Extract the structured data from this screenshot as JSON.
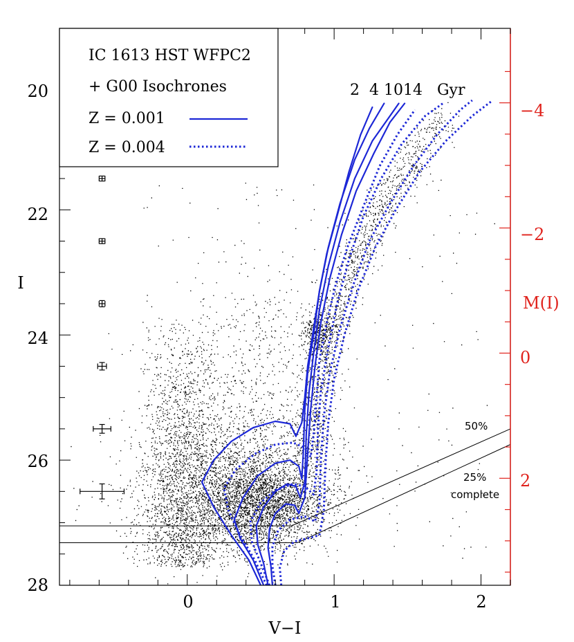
{
  "chart_data": {
    "type": "scatter",
    "title": "IC 1613 HST WFPC2",
    "xlabel": "V−I",
    "ylabel": "I",
    "ylabel_right": "M(I)",
    "xlim": [
      -0.87,
      2.2
    ],
    "ylim": [
      28,
      19.1
    ],
    "x_ticks": [
      0,
      1,
      2
    ],
    "x_tick_labels": [
      "0",
      "1",
      "2"
    ],
    "y_ticks": [
      20,
      22,
      24,
      26,
      28
    ],
    "y_tick_labels": [
      "20",
      "22",
      "24",
      "26",
      "28"
    ],
    "right_ticks": [
      -4,
      -2,
      0,
      2
    ],
    "right_tick_labels": [
      "−4",
      "−2",
      "0",
      "2"
    ],
    "distance_modulus": 24.29,
    "legend": {
      "line1": "IC 1613 HST WFPC2",
      "line2": "+ G00 Isochrones",
      "solid_label": "Z = 0.001",
      "dotted_label": "Z = 0.004"
    },
    "isochrone_ages_label": "2  4 1014   Gyr",
    "isochrone_ages_gyr": [
      2,
      4,
      10,
      14
    ],
    "completeness": {
      "label_50": "50%",
      "label_25": "25%",
      "label_complete": "complete",
      "line_50": [
        [
          -0.87,
          27.05
        ],
        [
          0.71,
          27.05
        ],
        [
          2.2,
          25.5
        ]
      ],
      "line_25": [
        [
          -0.87,
          27.32
        ],
        [
          0.75,
          27.32
        ],
        [
          2.2,
          25.75
        ]
      ]
    },
    "error_bars": [
      {
        "x": -0.58,
        "I": 21.5,
        "xerr": 0.02,
        "yerr": 0.04
      },
      {
        "x": -0.58,
        "I": 22.5,
        "xerr": 0.02,
        "yerr": 0.04
      },
      {
        "x": -0.58,
        "I": 23.5,
        "xerr": 0.02,
        "yerr": 0.05
      },
      {
        "x": -0.58,
        "I": 24.5,
        "xerr": 0.03,
        "yerr": 0.06
      },
      {
        "x": -0.58,
        "I": 25.5,
        "xerr": 0.06,
        "yerr": 0.07
      },
      {
        "x": -0.58,
        "I": 26.5,
        "xerr": 0.15,
        "yerr": 0.12
      }
    ],
    "series": [
      {
        "name": "Z=0.001 2 Gyr",
        "style": "solid",
        "color": "#1c27d6",
        "points": [
          [
            0.5,
            28
          ],
          [
            0.42,
            27.6
          ],
          [
            0.3,
            27.2
          ],
          [
            0.18,
            26.75
          ],
          [
            0.1,
            26.35
          ],
          [
            0.18,
            26.0
          ],
          [
            0.3,
            25.7
          ],
          [
            0.45,
            25.48
          ],
          [
            0.6,
            25.38
          ],
          [
            0.7,
            25.42
          ],
          [
            0.74,
            25.62
          ],
          [
            0.78,
            25.4
          ],
          [
            0.8,
            25.0
          ],
          [
            0.82,
            24.5
          ],
          [
            0.86,
            23.9
          ],
          [
            0.9,
            23.3
          ],
          [
            0.95,
            22.7
          ],
          [
            1.02,
            22.1
          ],
          [
            1.1,
            21.4
          ],
          [
            1.18,
            20.8
          ],
          [
            1.26,
            20.36
          ]
        ]
      },
      {
        "name": "Z=0.001 4 Gyr",
        "style": "solid",
        "color": "#1c27d6",
        "points": [
          [
            0.52,
            28
          ],
          [
            0.45,
            27.6
          ],
          [
            0.36,
            27.25
          ],
          [
            0.32,
            26.95
          ],
          [
            0.38,
            26.6
          ],
          [
            0.48,
            26.25
          ],
          [
            0.6,
            26.05
          ],
          [
            0.7,
            26.0
          ],
          [
            0.76,
            26.1
          ],
          [
            0.78,
            26.3
          ],
          [
            0.79,
            25.9
          ],
          [
            0.8,
            25.2
          ],
          [
            0.82,
            24.6
          ],
          [
            0.86,
            24.0
          ],
          [
            0.9,
            23.3
          ],
          [
            0.96,
            22.6
          ],
          [
            1.04,
            21.9
          ],
          [
            1.14,
            21.2
          ],
          [
            1.24,
            20.7
          ],
          [
            1.34,
            20.3
          ]
        ]
      },
      {
        "name": "Z=0.001 10 Gyr",
        "style": "solid",
        "color": "#1c27d6",
        "points": [
          [
            0.55,
            28
          ],
          [
            0.52,
            27.65
          ],
          [
            0.48,
            27.35
          ],
          [
            0.47,
            27.05
          ],
          [
            0.52,
            26.75
          ],
          [
            0.6,
            26.5
          ],
          [
            0.68,
            26.38
          ],
          [
            0.74,
            26.42
          ],
          [
            0.77,
            26.6
          ],
          [
            0.8,
            26.35
          ],
          [
            0.81,
            25.6
          ],
          [
            0.83,
            24.9
          ],
          [
            0.86,
            24.3
          ],
          [
            0.9,
            23.6
          ],
          [
            0.96,
            22.9
          ],
          [
            1.04,
            22.2
          ],
          [
            1.14,
            21.5
          ],
          [
            1.26,
            20.9
          ],
          [
            1.38,
            20.5
          ],
          [
            1.44,
            20.3
          ]
        ]
      },
      {
        "name": "Z=0.001 14 Gyr",
        "style": "solid",
        "color": "#1c27d6",
        "points": [
          [
            0.58,
            28
          ],
          [
            0.57,
            27.7
          ],
          [
            0.55,
            27.4
          ],
          [
            0.56,
            27.1
          ],
          [
            0.6,
            26.85
          ],
          [
            0.67,
            26.7
          ],
          [
            0.73,
            26.72
          ],
          [
            0.76,
            26.85
          ],
          [
            0.8,
            26.6
          ],
          [
            0.82,
            25.9
          ],
          [
            0.84,
            25.2
          ],
          [
            0.87,
            24.5
          ],
          [
            0.91,
            23.8
          ],
          [
            0.97,
            23.1
          ],
          [
            1.05,
            22.4
          ],
          [
            1.15,
            21.7
          ],
          [
            1.27,
            21.1
          ],
          [
            1.38,
            20.6
          ],
          [
            1.48,
            20.3
          ]
        ]
      },
      {
        "name": "Z=0.004 2 Gyr",
        "style": "dotted",
        "color": "#1c27d6",
        "points": [
          [
            0.54,
            28
          ],
          [
            0.46,
            27.6
          ],
          [
            0.36,
            27.2
          ],
          [
            0.28,
            26.8
          ],
          [
            0.25,
            26.45
          ],
          [
            0.33,
            26.15
          ],
          [
            0.46,
            25.9
          ],
          [
            0.6,
            25.75
          ],
          [
            0.72,
            25.72
          ],
          [
            0.8,
            25.8
          ],
          [
            0.84,
            25.95
          ],
          [
            0.86,
            25.6
          ],
          [
            0.88,
            25.0
          ],
          [
            0.9,
            24.4
          ],
          [
            0.95,
            23.8
          ],
          [
            1.01,
            23.2
          ],
          [
            1.09,
            22.6
          ],
          [
            1.19,
            22.0
          ],
          [
            1.31,
            21.3
          ],
          [
            1.43,
            20.8
          ],
          [
            1.55,
            20.4
          ]
        ]
      },
      {
        "name": "Z=0.004 4 Gyr",
        "style": "dotted",
        "color": "#1c27d6",
        "points": [
          [
            0.56,
            28
          ],
          [
            0.5,
            27.65
          ],
          [
            0.44,
            27.3
          ],
          [
            0.43,
            26.98
          ],
          [
            0.5,
            26.68
          ],
          [
            0.6,
            26.48
          ],
          [
            0.72,
            26.38
          ],
          [
            0.8,
            26.42
          ],
          [
            0.86,
            26.55
          ],
          [
            0.88,
            26.2
          ],
          [
            0.89,
            25.5
          ],
          [
            0.91,
            24.9
          ],
          [
            0.96,
            24.2
          ],
          [
            1.02,
            23.5
          ],
          [
            1.1,
            22.8
          ],
          [
            1.2,
            22.1
          ],
          [
            1.32,
            21.5
          ],
          [
            1.46,
            20.95
          ],
          [
            1.62,
            20.5
          ],
          [
            1.74,
            20.3
          ]
        ]
      },
      {
        "name": "Z=0.004 10 Gyr",
        "style": "dotted",
        "color": "#1c27d6",
        "points": [
          [
            0.6,
            28
          ],
          [
            0.58,
            27.7
          ],
          [
            0.58,
            27.38
          ],
          [
            0.62,
            27.12
          ],
          [
            0.7,
            26.95
          ],
          [
            0.8,
            26.9
          ],
          [
            0.87,
            26.98
          ],
          [
            0.9,
            26.7
          ],
          [
            0.91,
            26.0
          ],
          [
            0.93,
            25.3
          ],
          [
            0.97,
            24.6
          ],
          [
            1.04,
            23.9
          ],
          [
            1.13,
            23.2
          ],
          [
            1.24,
            22.5
          ],
          [
            1.38,
            21.9
          ],
          [
            1.54,
            21.3
          ],
          [
            1.7,
            20.8
          ],
          [
            1.86,
            20.4
          ],
          [
            1.94,
            20.25
          ]
        ]
      },
      {
        "name": "Z=0.004 14 Gyr",
        "style": "dotted",
        "color": "#1c27d6",
        "points": [
          [
            0.64,
            28
          ],
          [
            0.63,
            27.72
          ],
          [
            0.66,
            27.45
          ],
          [
            0.73,
            27.3
          ],
          [
            0.82,
            27.25
          ],
          [
            0.9,
            27.2
          ],
          [
            0.93,
            26.8
          ],
          [
            0.94,
            26.1
          ],
          [
            0.96,
            25.4
          ],
          [
            1.0,
            24.7
          ],
          [
            1.07,
            24.0
          ],
          [
            1.16,
            23.3
          ],
          [
            1.28,
            22.6
          ],
          [
            1.42,
            22.0
          ],
          [
            1.58,
            21.4
          ],
          [
            1.76,
            20.9
          ],
          [
            1.94,
            20.5
          ],
          [
            2.08,
            20.25
          ]
        ]
      }
    ]
  },
  "colors": {
    "isochrone": "#1c27d6",
    "right_axis": "#e0231d",
    "points": "#000000"
  }
}
